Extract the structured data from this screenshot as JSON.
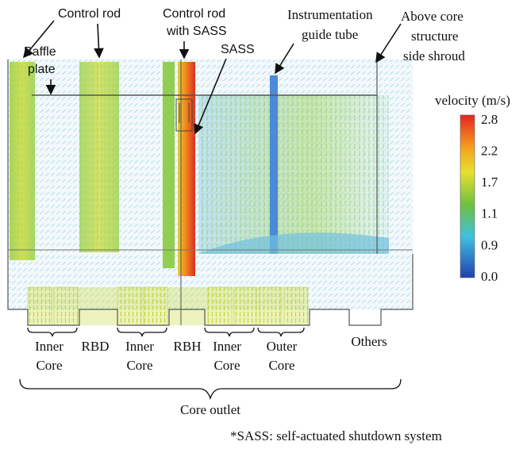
{
  "annotations": {
    "control_rod": "Control rod",
    "control_rod_with_sass": [
      "Control rod",
      "with SASS"
    ],
    "sass": "SASS",
    "baffle_plate": [
      "Baffle",
      "plate"
    ],
    "instrumentation_guide_tube": [
      "Instrumentation",
      "guide tube"
    ],
    "above_core_structure": [
      "Above core",
      "structure",
      "side shroud"
    ]
  },
  "colorbar": {
    "title": "velocity (m/s)",
    "ticks": [
      "2.8",
      "2.2",
      "1.7",
      "1.1",
      "0.9",
      "0.0"
    ]
  },
  "regions": [
    {
      "lines": [
        "Inner",
        "Core"
      ]
    },
    {
      "lines": [
        "RBD"
      ]
    },
    {
      "lines": [
        "Inner",
        "Core"
      ]
    },
    {
      "lines": [
        "RBH"
      ]
    },
    {
      "lines": [
        "Inner",
        "Core"
      ]
    },
    {
      "lines": [
        "Outer",
        "Core"
      ]
    },
    {
      "lines": [
        "Others"
      ]
    }
  ],
  "core_outlet": "Core outlet",
  "footnote": "*SASS: self-actuated shutdown system"
}
